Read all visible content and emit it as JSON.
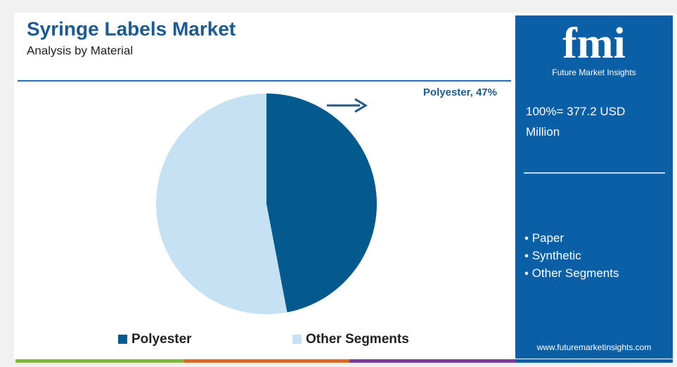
{
  "chart_data": {
    "type": "pie",
    "title": "Syringe Labels Market",
    "subtitle": "Analysis by Material",
    "categories": [
      "Polyester",
      "Other Segments"
    ],
    "values": [
      47,
      53
    ],
    "value_labels": [
      "Polyester, 47%",
      null
    ],
    "colors": [
      "#045a8d",
      "#c6e1f2"
    ],
    "legend": "bottom"
  },
  "panel": {
    "logo": "fmi",
    "logo_subtitle": "Future Market Insights",
    "total": "100%= 377.2 USD Million",
    "bullets": [
      "Paper",
      "Synthetic",
      "Other Segments"
    ],
    "url": "www.futuremarketinsights.com"
  }
}
